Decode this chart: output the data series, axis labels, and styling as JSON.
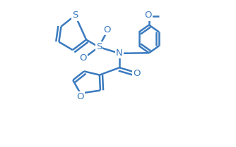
{
  "bg_color": "#ffffff",
  "line_color": "#3a7abf",
  "line_width": 1.8,
  "figsize": [
    3.34,
    2.09
  ],
  "dpi": 100,
  "xlim": [
    0,
    1.0
  ],
  "ylim": [
    0.0,
    1.0
  ]
}
